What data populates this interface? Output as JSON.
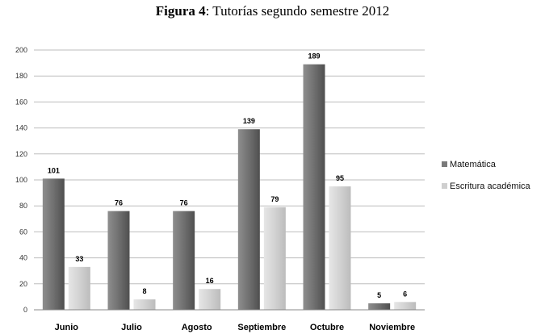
{
  "title": {
    "bold": "Figura 4",
    "rest": ": Tutorías segundo semestre 2012"
  },
  "chart_data": {
    "type": "bar",
    "title": "Figura 4: Tutorías segundo semestre 2012",
    "categories": [
      "Junio",
      "Julio",
      "Agosto",
      "Septiembre",
      "Octubre",
      "Noviembre"
    ],
    "series": [
      {
        "name": "Matemática",
        "values": [
          101,
          76,
          76,
          139,
          189,
          5
        ],
        "color": "#7a7a7a"
      },
      {
        "name": "Escritura académica",
        "values": [
          33,
          8,
          16,
          79,
          95,
          6
        ],
        "color": "#cfcfcf"
      }
    ],
    "ylim": [
      0,
      200
    ],
    "yticks": [
      "0",
      "20",
      "40",
      "60",
      "80",
      "100",
      "120",
      "140",
      "160",
      "180",
      "200"
    ],
    "grid": true,
    "legend": "right"
  }
}
